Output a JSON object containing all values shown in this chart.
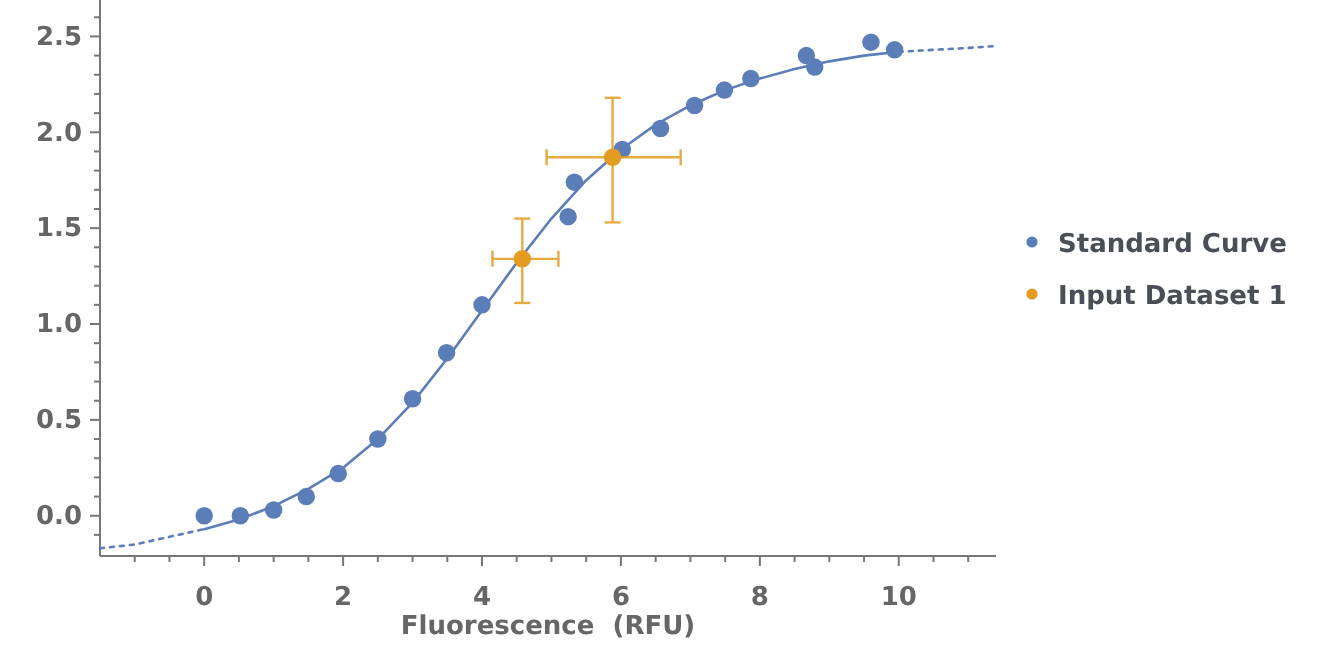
{
  "chart_data": {
    "type": "scatter",
    "xlabel": "Fluorescence  (RFU)",
    "xlim": [
      -1.5,
      11.4
    ],
    "ylim": [
      -0.21,
      2.69
    ],
    "xticks": [
      {
        "value": -1,
        "label": null
      },
      {
        "value": -0.5,
        "label": null
      },
      0,
      {
        "value": 0.5,
        "label": null
      },
      {
        "value": 1,
        "label": null
      },
      {
        "value": 1.5,
        "label": null
      },
      2,
      {
        "value": 2.5,
        "label": null
      },
      {
        "value": 3,
        "label": null
      },
      {
        "value": 3.5,
        "label": null
      },
      4,
      {
        "value": 4.5,
        "label": null
      },
      {
        "value": 5,
        "label": null
      },
      {
        "value": 5.5,
        "label": null
      },
      6,
      {
        "value": 6.5,
        "label": null
      },
      {
        "value": 7,
        "label": null
      },
      {
        "value": 7.5,
        "label": null
      },
      8,
      {
        "value": 8.5,
        "label": null
      },
      {
        "value": 9,
        "label": null
      },
      {
        "value": 9.5,
        "label": null
      },
      10,
      {
        "value": 10.5,
        "label": null
      },
      {
        "value": 11,
        "label": null
      }
    ],
    "yticks": [
      {
        "value": -0.1,
        "label": null
      },
      {
        "value": 0,
        "label": "0.0"
      },
      {
        "value": 0.1,
        "label": null
      },
      {
        "value": 0.2,
        "label": null
      },
      {
        "value": 0.3,
        "label": null
      },
      {
        "value": 0.4,
        "label": null
      },
      {
        "value": 0.5,
        "label": "0.5"
      },
      {
        "value": 0.6,
        "label": null
      },
      {
        "value": 0.7,
        "label": null
      },
      {
        "value": 0.8,
        "label": null
      },
      {
        "value": 0.9,
        "label": null
      },
      {
        "value": 1,
        "label": "1.0"
      },
      {
        "value": 1.1,
        "label": null
      },
      {
        "value": 1.2,
        "label": null
      },
      {
        "value": 1.3,
        "label": null
      },
      {
        "value": 1.4,
        "label": null
      },
      {
        "value": 1.5,
        "label": "1.5"
      },
      {
        "value": 1.6,
        "label": null
      },
      {
        "value": 1.7,
        "label": null
      },
      {
        "value": 1.8,
        "label": null
      },
      {
        "value": 1.9,
        "label": null
      },
      {
        "value": 2,
        "label": "2.0"
      },
      {
        "value": 2.1,
        "label": null
      },
      {
        "value": 2.2,
        "label": null
      },
      {
        "value": 2.3,
        "label": null
      },
      {
        "value": 2.4,
        "label": null
      },
      {
        "value": 2.5,
        "label": "2.5"
      },
      {
        "value": 2.6,
        "label": null
      }
    ],
    "grid": false,
    "legend": "right",
    "marker": "circle",
    "series": [
      {
        "type": "line",
        "color": "#5b7db8",
        "line_style": "dotted",
        "marker": "none",
        "x": [
          -1.5,
          -1,
          -0.5,
          0
        ],
        "values": [
          -0.17,
          -0.15,
          -0.11,
          -0.07
        ]
      },
      {
        "type": "line",
        "color": "#5b7db8",
        "line_style": "solid",
        "marker": "none",
        "x": [
          0,
          0.5,
          1,
          1.5,
          2,
          2.5,
          3,
          3.5,
          4,
          4.5,
          5,
          5.5,
          6,
          6.5,
          7,
          7.5,
          8,
          8.5,
          9,
          9.5,
          10
        ],
        "values": [
          -0.07,
          -0.02,
          0.05,
          0.14,
          0.25,
          0.4,
          0.59,
          0.82,
          1.07,
          1.32,
          1.55,
          1.75,
          1.91,
          2.04,
          2.14,
          2.22,
          2.28,
          2.33,
          2.37,
          2.4,
          2.42
        ]
      },
      {
        "type": "line",
        "color": "#5b7db8",
        "line_style": "dotted",
        "marker": "none",
        "x": [
          10,
          10.5,
          11,
          11.4
        ],
        "values": [
          2.42,
          2.43,
          2.44,
          2.45
        ]
      },
      {
        "name": "Standard Curve",
        "color": "#5b7db8",
        "x": [
          0,
          0.52,
          1,
          1.47,
          1.93,
          2.5,
          3,
          3.49,
          4,
          5.24,
          5.33,
          6.02,
          6.57,
          7.06,
          7.49,
          7.87,
          8.67,
          8.79,
          9.6,
          9.94
        ],
        "values": [
          0,
          0,
          0.03,
          0.1,
          0.22,
          0.4,
          0.61,
          0.85,
          1.1,
          1.56,
          1.74,
          1.91,
          2.02,
          2.14,
          2.22,
          2.28,
          2.4,
          2.34,
          2.47,
          2.43
        ]
      },
      {
        "name": "Input Dataset 1",
        "color": "#e39c1f",
        "x": [
          4.58,
          5.88
        ],
        "values": [
          1.34,
          1.87
        ],
        "errors": [
          [
            1.11,
            1.55
          ],
          [
            1.53,
            2.18
          ]
        ],
        "xerrors": [
          [
            4.15,
            5.1
          ],
          [
            4.93,
            6.86
          ]
        ]
      }
    ]
  }
}
